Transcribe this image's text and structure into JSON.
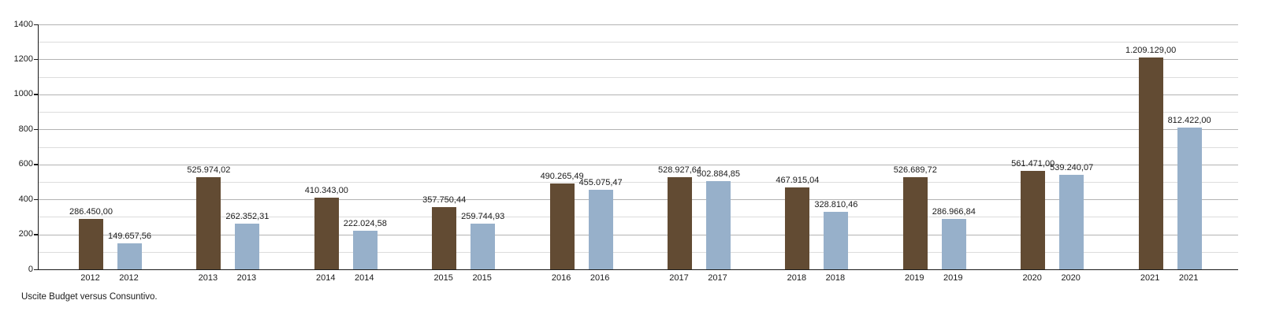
{
  "chart_data": {
    "type": "bar",
    "title": "Uscite Budget versus Consuntivo.",
    "categories": [
      "2012",
      "2013",
      "2014",
      "2015",
      "2016",
      "2017",
      "2018",
      "2019",
      "2020",
      "2021"
    ],
    "series": [
      {
        "name": "Budget",
        "color": "#624b33",
        "values": [
          286450.0,
          525974.02,
          410343.0,
          357750.44,
          490265.49,
          528927.64,
          467915.04,
          526689.72,
          561471.0,
          1209129.0
        ],
        "labels": [
          "286.450,00",
          "525.974,02",
          "410.343,00",
          "357.750,44",
          "490.265,49",
          "528.927,64",
          "467.915,04",
          "526.689,72",
          "561.471,00",
          "1.209.129,00"
        ]
      },
      {
        "name": "Consuntivo",
        "color": "#97b0ca",
        "values": [
          149657.56,
          262352.31,
          222024.58,
          259744.93,
          455075.47,
          502884.85,
          328810.46,
          286966.84,
          539240.07,
          812422.0
        ],
        "labels": [
          "149.657,56",
          "262.352,31",
          "222.024,58",
          "259.744,93",
          "455.075,47",
          "502.884,85",
          "328.810,46",
          "286.966,84",
          "539.240,07",
          "812.422,00"
        ]
      }
    ],
    "y_axis": {
      "min": 0,
      "max": 1400,
      "major_step": 200,
      "minor_step": 100,
      "tick_labels": [
        "0",
        "200",
        "400",
        "600",
        "800",
        "1000",
        "1200",
        "1400"
      ],
      "value_divisor": 1000
    },
    "grid": {
      "major_color": "#b3b3b3",
      "minor_color": "#dcdcdc"
    },
    "axis_color": "#1a1a1a",
    "legend": "none"
  }
}
